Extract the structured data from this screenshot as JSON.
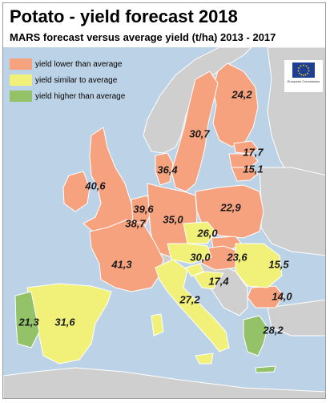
{
  "title": "Potato - yield forecast 2018",
  "subtitle": "MARS forecast versus average yield (t/ha) 2013 - 2017",
  "legend": [
    {
      "label": "yield lower than average",
      "color": "#f7a27e"
    },
    {
      "label": "yield similar to average",
      "color": "#f1f17a"
    },
    {
      "label": "yield higher than average",
      "color": "#93c268"
    }
  ],
  "logo": {
    "text": "European Commission",
    "icon": "eu-flag-icon"
  },
  "colors": {
    "sea": "#bcd2e6",
    "non_eu": "#cfcfcf",
    "border": "#ffffff"
  },
  "regions": [
    {
      "name": "Ireland",
      "value": "40,6",
      "category": "lower"
    },
    {
      "name": "United Kingdom",
      "value": "",
      "category": "lower"
    },
    {
      "name": "Belgium",
      "value": "39,6",
      "category": "lower"
    },
    {
      "name": "Netherlands",
      "value": "",
      "category": "lower"
    },
    {
      "name": "Luxembourg",
      "value": "38,7",
      "category": "lower"
    },
    {
      "name": "Denmark",
      "value": "36,4",
      "category": "lower"
    },
    {
      "name": "Germany",
      "value": "35,0",
      "category": "lower"
    },
    {
      "name": "France",
      "value": "41,3",
      "category": "lower"
    },
    {
      "name": "Poland",
      "value": "22,9",
      "category": "lower"
    },
    {
      "name": "Czechia",
      "value": "26,0",
      "category": "similar"
    },
    {
      "name": "Austria",
      "value": "30,0",
      "category": "similar"
    },
    {
      "name": "Hungary",
      "value": "23,6",
      "category": "lower"
    },
    {
      "name": "Slovakia",
      "value": "",
      "category": "lower"
    },
    {
      "name": "Slovenia",
      "value": "17,4",
      "category": "similar"
    },
    {
      "name": "Croatia",
      "value": "",
      "category": "similar"
    },
    {
      "name": "Romania",
      "value": "15,5",
      "category": "similar"
    },
    {
      "name": "Bulgaria",
      "value": "14,0",
      "category": "lower"
    },
    {
      "name": "Greece",
      "value": "28,2",
      "category": "higher"
    },
    {
      "name": "Italy",
      "value": "27,2",
      "category": "similar"
    },
    {
      "name": "Spain",
      "value": "31,6",
      "category": "similar"
    },
    {
      "name": "Portugal",
      "value": "21,3",
      "category": "higher"
    },
    {
      "name": "Sweden",
      "value": "30,7",
      "category": "lower"
    },
    {
      "name": "Finland",
      "value": "24,2",
      "category": "lower"
    },
    {
      "name": "Latvia",
      "value": "17,7",
      "category": "lower"
    },
    {
      "name": "Lithuania",
      "value": "15,1",
      "category": "lower"
    },
    {
      "name": "Estonia",
      "value": "",
      "category": "lower"
    }
  ]
}
